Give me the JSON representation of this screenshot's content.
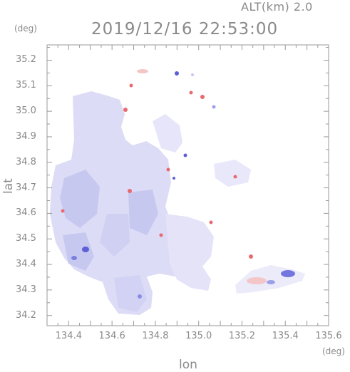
{
  "header": {
    "altitude_label": "ALT(km)  2.0",
    "datetime": "2019/12/16 22:53:00",
    "y_unit": "(deg)",
    "x_unit": "(deg)"
  },
  "chart_data": {
    "type": "heatmap",
    "xlabel": "lon",
    "ylabel": "lat",
    "xlim": [
      134.3,
      135.6
    ],
    "ylim": [
      34.16,
      35.26
    ],
    "x_ticks": [
      "134.4",
      "134.6",
      "134.8",
      "135.0",
      "135.2",
      "135.4",
      "135.6"
    ],
    "y_ticks": [
      "35.2",
      "35.1",
      "35.0",
      "34.9",
      "34.8",
      "34.7",
      "34.6",
      "34.5",
      "34.4",
      "34.3",
      "34.2"
    ],
    "grid": false,
    "colors": {
      "frame": "#9a9a9a",
      "field_base": "#dcdcf6",
      "light_blue": "#c6c8f0",
      "medium_blue": "#9da0e8",
      "deep_blue": "#5b5fd8",
      "pink": "#f3c6c8",
      "red": "#e86a70",
      "near_zero": "#efeefc"
    }
  }
}
